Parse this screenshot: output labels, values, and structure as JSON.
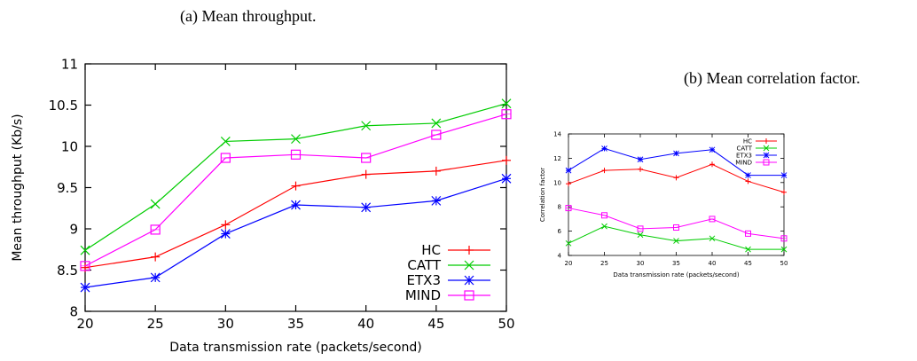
{
  "captions": {
    "a": "(a) Mean throughput.",
    "b": "(b) Mean correlation factor."
  },
  "colors": {
    "HC": "#ff0000",
    "CATT": "#00cc00",
    "ETX3": "#0000ff",
    "MIND": "#ff00ff"
  },
  "chart_data": [
    {
      "type": "line",
      "title": "",
      "xlabel": "Data transmission rate (packets/second)",
      "ylabel": "Mean throughput (Kb/s)",
      "x": [
        20,
        25,
        30,
        35,
        40,
        45,
        50
      ],
      "xlim": [
        20,
        50
      ],
      "ylim": [
        8,
        11
      ],
      "xticks": [
        20,
        25,
        30,
        35,
        40,
        45,
        50
      ],
      "yticks": [
        8,
        8.5,
        9,
        9.5,
        10,
        10.5,
        11
      ],
      "legend_position": "bottom-right",
      "grid": false,
      "series": [
        {
          "name": "HC",
          "marker": "plus",
          "values": [
            8.53,
            8.66,
            9.05,
            9.52,
            9.66,
            9.7,
            9.83
          ]
        },
        {
          "name": "CATT",
          "marker": "x",
          "values": [
            8.74,
            9.3,
            10.06,
            10.09,
            10.25,
            10.28,
            10.52
          ]
        },
        {
          "name": "ETX3",
          "marker": "star",
          "values": [
            8.29,
            8.41,
            8.94,
            9.29,
            9.26,
            9.34,
            9.61
          ]
        },
        {
          "name": "MIND",
          "marker": "square",
          "values": [
            8.55,
            8.99,
            9.86,
            9.9,
            9.86,
            10.14,
            10.39
          ]
        }
      ]
    },
    {
      "type": "line",
      "title": "",
      "xlabel": "Data transmission rate (packets/second)",
      "ylabel": "Correlation factor",
      "x": [
        20,
        25,
        30,
        35,
        40,
        45,
        50
      ],
      "xlim": [
        20,
        50
      ],
      "ylim": [
        4,
        14
      ],
      "xticks": [
        20,
        25,
        30,
        35,
        40,
        45,
        50
      ],
      "yticks": [
        4,
        6,
        8,
        10,
        12,
        14
      ],
      "legend_position": "top-right",
      "grid": false,
      "series": [
        {
          "name": "HC",
          "marker": "plus",
          "values": [
            9.9,
            11.0,
            11.1,
            10.4,
            11.5,
            10.1,
            9.2
          ]
        },
        {
          "name": "CATT",
          "marker": "x",
          "values": [
            5.0,
            6.4,
            5.7,
            5.2,
            5.4,
            4.5,
            4.5
          ]
        },
        {
          "name": "ETX3",
          "marker": "star",
          "values": [
            11.0,
            12.8,
            11.9,
            12.4,
            12.7,
            10.6,
            10.6
          ]
        },
        {
          "name": "MIND",
          "marker": "square",
          "values": [
            7.9,
            7.3,
            6.2,
            6.3,
            7.0,
            5.8,
            5.4
          ]
        }
      ]
    }
  ]
}
